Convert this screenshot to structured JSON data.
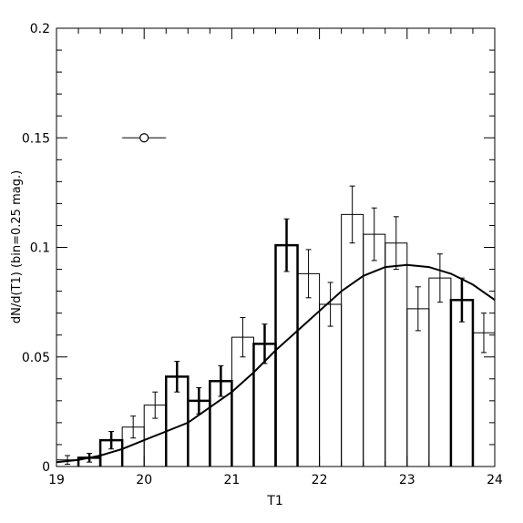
{
  "chart_data": {
    "type": "histogram",
    "xlabel": "T1",
    "ylabel": "dN/d(T1)  (bin=0.25  mag.)",
    "xlim": [
      19,
      24
    ],
    "ylim": [
      0,
      0.2
    ],
    "xticks": [
      19,
      20,
      21,
      22,
      23,
      24
    ],
    "yticks": [
      0,
      0.05,
      0.1,
      0.15,
      0.2
    ],
    "xtick_labels": [
      "19",
      "20",
      "21",
      "22",
      "23",
      "24"
    ],
    "ytick_labels": [
      "0",
      "0.05",
      "0.1",
      "0.15",
      "0.2"
    ],
    "bin_width": 0.25,
    "series": [
      {
        "style": "thin",
        "bins": [
          {
            "x0": 19.0,
            "y": 0.003,
            "err": 0.002
          },
          {
            "x0": 19.75,
            "y": 0.018,
            "err": 0.005
          },
          {
            "x0": 20.0,
            "y": 0.028,
            "err": 0.006
          },
          {
            "x0": 21.0,
            "y": 0.059,
            "err": 0.009
          },
          {
            "x0": 21.75,
            "y": 0.088,
            "err": 0.011
          },
          {
            "x0": 22.0,
            "y": 0.074,
            "err": 0.01
          },
          {
            "x0": 22.25,
            "y": 0.115,
            "err": 0.013
          },
          {
            "x0": 22.5,
            "y": 0.106,
            "err": 0.012
          },
          {
            "x0": 22.75,
            "y": 0.102,
            "err": 0.012
          },
          {
            "x0": 23.0,
            "y": 0.072,
            "err": 0.01
          },
          {
            "x0": 23.25,
            "y": 0.086,
            "err": 0.011
          },
          {
            "x0": 23.75,
            "y": 0.061,
            "err": 0.009
          }
        ]
      },
      {
        "style": "thick",
        "bins": [
          {
            "x0": 19.25,
            "y": 0.004,
            "err": 0.002
          },
          {
            "x0": 19.5,
            "y": 0.012,
            "err": 0.004
          },
          {
            "x0": 20.25,
            "y": 0.041,
            "err": 0.007
          },
          {
            "x0": 20.5,
            "y": 0.03,
            "err": 0.006
          },
          {
            "x0": 20.75,
            "y": 0.039,
            "err": 0.007
          },
          {
            "x0": 21.25,
            "y": 0.056,
            "err": 0.009
          },
          {
            "x0": 21.5,
            "y": 0.101,
            "err": 0.012
          },
          {
            "x0": 23.5,
            "y": 0.076,
            "err": 0.01
          }
        ]
      }
    ],
    "curve": {
      "x": [
        19.0,
        19.25,
        19.5,
        19.75,
        20.0,
        20.25,
        20.5,
        20.75,
        21.0,
        21.25,
        21.5,
        21.75,
        22.0,
        22.25,
        22.5,
        22.75,
        23.0,
        23.25,
        23.5,
        23.75,
        24.0
      ],
      "y": [
        0.002,
        0.003,
        0.005,
        0.008,
        0.012,
        0.016,
        0.02,
        0.027,
        0.034,
        0.043,
        0.053,
        0.062,
        0.071,
        0.08,
        0.087,
        0.091,
        0.092,
        0.091,
        0.088,
        0.083,
        0.076
      ]
    },
    "marker": {
      "x": 20.0,
      "y": 0.15,
      "xerr": 0.25
    }
  }
}
